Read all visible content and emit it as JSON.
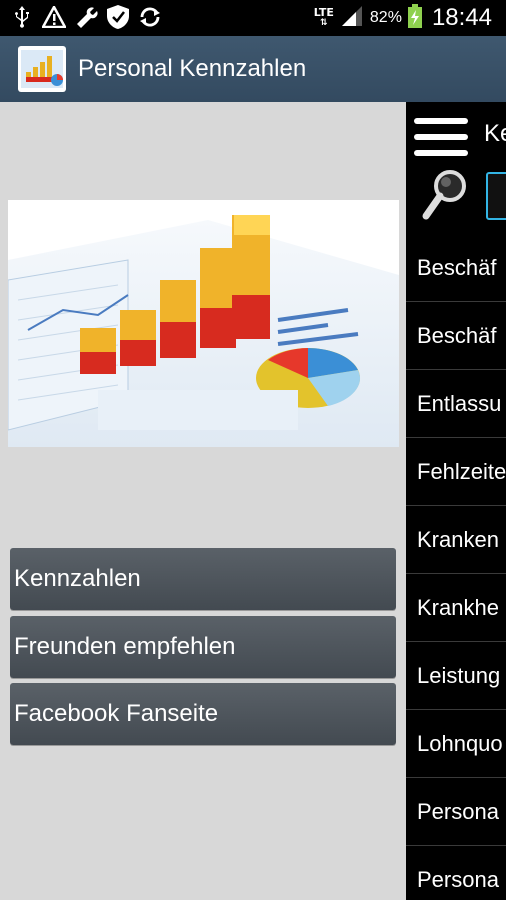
{
  "statusbar": {
    "left_icons": [
      "usb-icon",
      "warning-icon",
      "wrench-icon",
      "shield-icon",
      "sync-icon"
    ],
    "network": "LTE",
    "battery": "82%",
    "time": "18:44"
  },
  "appbar": {
    "title": "Personal Kennzahlen",
    "logo_icon": "chart-app-logo-icon"
  },
  "menu": {
    "buttons": [
      {
        "label": "Kennzahlen"
      },
      {
        "label": "Freunden empfehlen"
      },
      {
        "label": "Facebook Fanseite"
      }
    ]
  },
  "drawer": {
    "title": "Ke",
    "search_icon": "search-icon",
    "search_value": "",
    "items": [
      {
        "label": "Beschäf"
      },
      {
        "label": "Beschäf"
      },
      {
        "label": "Entlassu"
      },
      {
        "label": "Fehlzeite"
      },
      {
        "label": "Kranken"
      },
      {
        "label": "Krankhe"
      },
      {
        "label": "Leistung"
      },
      {
        "label": "Lohnquo"
      },
      {
        "label": "Persona"
      },
      {
        "label": "Persona"
      }
    ]
  },
  "colors": {
    "statusbar_bg": "#000000",
    "appbar_bg": "#3a5168",
    "button_bg": "#4d545b",
    "drawer_bg": "#000000",
    "accent": "#33b5e5"
  }
}
